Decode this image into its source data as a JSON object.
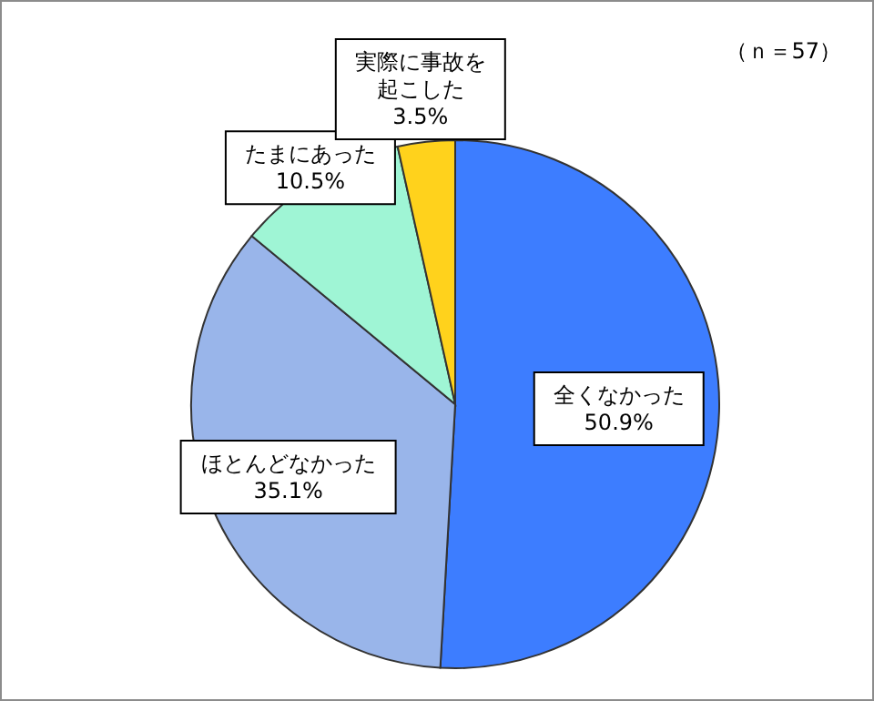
{
  "chart_data": {
    "type": "pie",
    "categories": [
      "全くなかった",
      "ほとんどなかった",
      "たまにあった",
      "実際に事故を起こした"
    ],
    "values": [
      50.9,
      35.1,
      10.5,
      3.5
    ],
    "value_labels": [
      "50.9%",
      "35.1%",
      "10.5%",
      "3.5%"
    ],
    "colors": [
      "#3d7dff",
      "#99b5ea",
      "#9ff5d5",
      "#ffd21c"
    ],
    "annotations": [
      "（ｎ＝57）"
    ]
  }
}
